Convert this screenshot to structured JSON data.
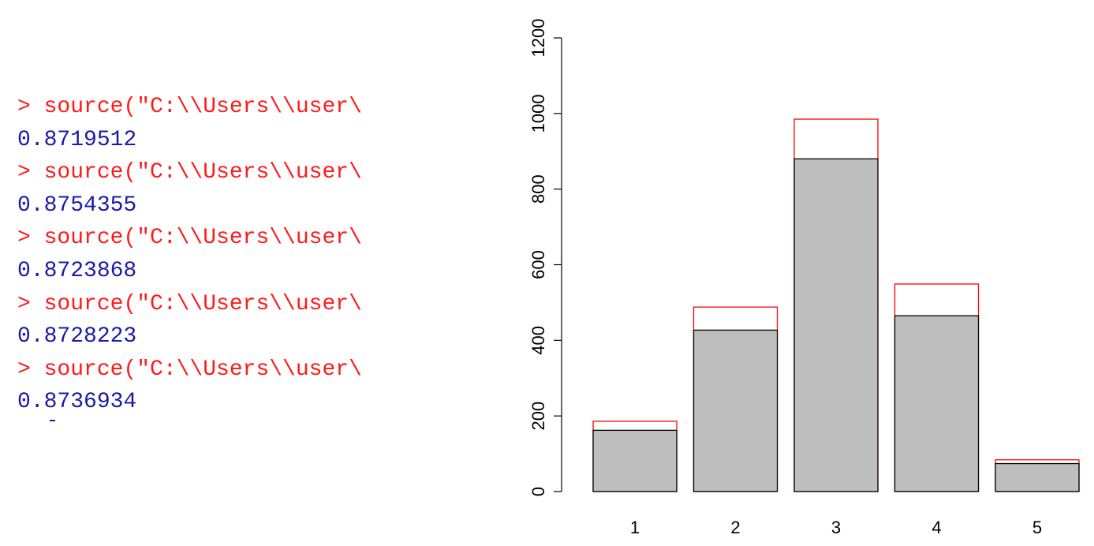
{
  "console": {
    "lines": [
      {
        "kind": "command",
        "text": "> source(\"C:\\\\Users\\\\user\\"
      },
      {
        "kind": "output",
        "text": "0.8719512"
      },
      {
        "kind": "command",
        "text": "> source(\"C:\\\\Users\\\\user\\"
      },
      {
        "kind": "output",
        "text": "0.8754355"
      },
      {
        "kind": "command",
        "text": "> source(\"C:\\\\Users\\\\user\\"
      },
      {
        "kind": "output",
        "text": "0.8723868"
      },
      {
        "kind": "command",
        "text": "> source(\"C:\\\\Users\\\\user\\"
      },
      {
        "kind": "output",
        "text": "0.8728223"
      },
      {
        "kind": "command",
        "text": "> source(\"C:\\\\Users\\\\user\\"
      },
      {
        "kind": "output",
        "text": "0.8736934"
      }
    ],
    "colors": {
      "command": "#ff1a1a",
      "output": "#1a1aa6"
    }
  },
  "chart_data": {
    "type": "bar",
    "title": "",
    "xlabel": "",
    "ylabel": "",
    "categories": [
      "1",
      "2",
      "3",
      "4",
      "5"
    ],
    "series": [
      {
        "values": [
          186,
          488,
          985,
          549,
          84
        ],
        "fill": "none",
        "stroke": "#ff0000"
      },
      {
        "values": [
          162,
          427,
          880,
          465,
          74
        ],
        "fill": "#bebebe",
        "stroke": "#000000"
      }
    ],
    "ylim": [
      0,
      1200
    ],
    "yticks": [
      0,
      200,
      400,
      600,
      800,
      1000,
      1200
    ],
    "grid": false,
    "legend": "none"
  }
}
